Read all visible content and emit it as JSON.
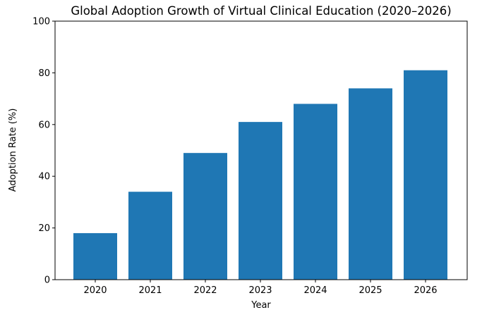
{
  "chart_data": {
    "type": "bar",
    "title": "Global Adoption Growth of Virtual Clinical Education (2020–2026)",
    "xlabel": "Year",
    "ylabel": "Adoption Rate (%)",
    "categories": [
      "2020",
      "2021",
      "2022",
      "2023",
      "2024",
      "2025",
      "2026"
    ],
    "values": [
      18,
      34,
      49,
      61,
      68,
      74,
      81
    ],
    "ylim": [
      0,
      100
    ],
    "yticks": [
      "0",
      "20",
      "40",
      "60",
      "80",
      "100"
    ],
    "grid": false,
    "legend": "none",
    "bar_color": "#1f77b4"
  }
}
